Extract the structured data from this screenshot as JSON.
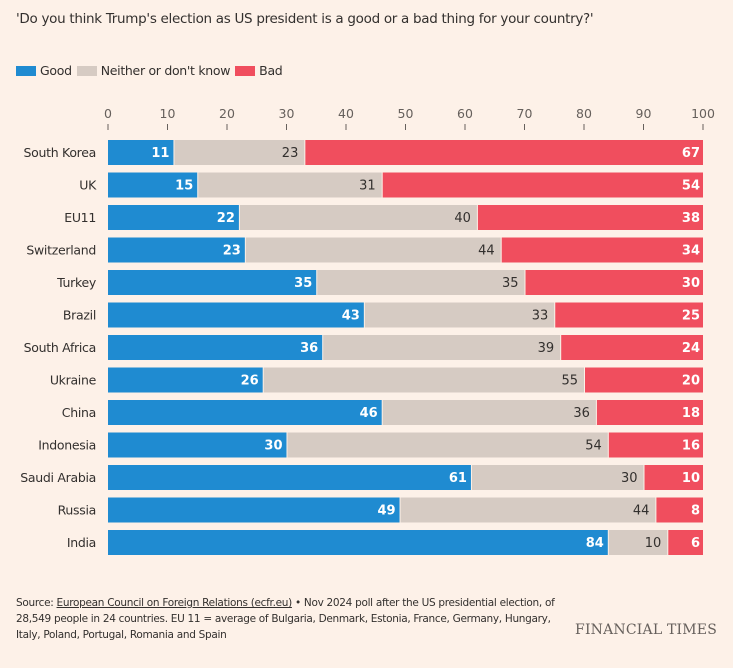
{
  "chart_data": {
    "type": "bar",
    "stacked": true,
    "orientation": "horizontal",
    "title": "'Do you think Trump's election as US president is a good or a bad thing for your country?'",
    "xlim": [
      0,
      100
    ],
    "xticks": [
      0,
      10,
      20,
      30,
      40,
      50,
      60,
      70,
      80,
      90,
      100
    ],
    "legend_position": "top-left",
    "categories": [
      "South Korea",
      "UK",
      "EU11",
      "Switzerland",
      "Turkey",
      "Brazil",
      "South Africa",
      "Ukraine",
      "China",
      "Indonesia",
      "Saudi Arabia",
      "Russia",
      "India"
    ],
    "series": [
      {
        "name": "Good",
        "color": "#1f8bd1",
        "values": [
          11,
          15,
          22,
          23,
          35,
          43,
          36,
          26,
          46,
          30,
          61,
          49,
          84
        ]
      },
      {
        "name": "Neither or don't know",
        "color": "#d6cbc3",
        "values": [
          23,
          31,
          40,
          44,
          35,
          33,
          39,
          55,
          36,
          54,
          30,
          44,
          10
        ]
      },
      {
        "name": "Bad",
        "color": "#f04e5e",
        "values": [
          67,
          54,
          38,
          34,
          30,
          25,
          24,
          20,
          18,
          16,
          10,
          8,
          6
        ]
      }
    ]
  },
  "footer": {
    "source_prefix": "Source: ",
    "source_link": "European Council on Foreign Relations (ecfr.eu)",
    "source_rest": " • Nov 2024 poll after the US presidential election, of 28,549 people in 24 countries. EU 11 = average of Bulgaria, Denmark, Estonia, France, Germany, Hungary, Italy, Poland, Portugal, Romania and Spain",
    "brand": "FINANCIAL TIMES"
  }
}
